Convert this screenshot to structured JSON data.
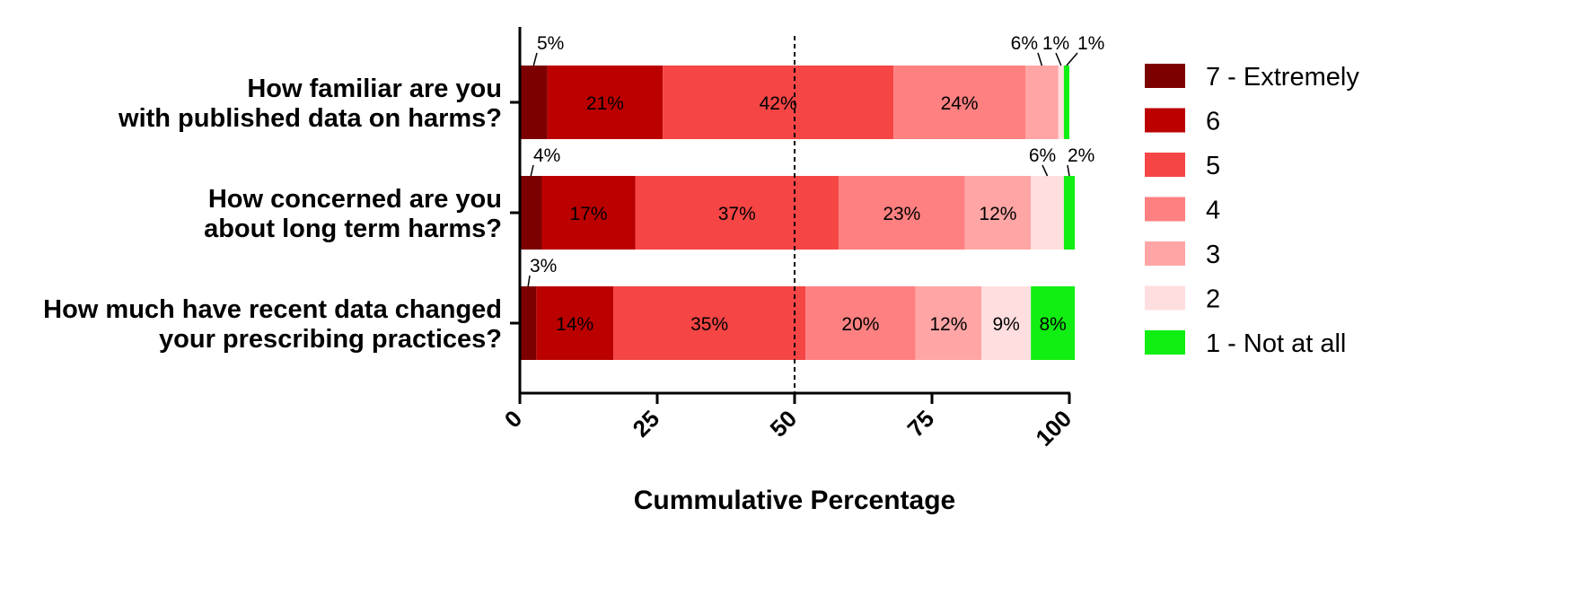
{
  "chart_data": {
    "type": "bar",
    "orientation": "horizontal",
    "stacked": true,
    "xlabel": "Cummulative Percentage",
    "xlim": [
      0,
      100
    ],
    "xticks": [
      "0",
      "25",
      "50",
      "75",
      "100"
    ],
    "reference_line": 50,
    "grid": false,
    "legend_position": "right",
    "categories": [
      [
        "How familiar are you",
        "with published data on harms?"
      ],
      [
        "How concerned are you",
        "about long term harms?"
      ],
      [
        "How much have recent data changed",
        "your prescribing practices?"
      ]
    ],
    "series": [
      {
        "name": "7 - Extremely",
        "color": "#7d0000",
        "values": [
          5,
          4,
          3
        ]
      },
      {
        "name": "6",
        "color": "#bb0000",
        "values": [
          21,
          17,
          14
        ]
      },
      {
        "name": "5",
        "color": "#f54545",
        "values": [
          42,
          37,
          35
        ]
      },
      {
        "name": "4",
        "color": "#ff8080",
        "values": [
          24,
          23,
          20
        ]
      },
      {
        "name": "3",
        "color": "#ffa5a5",
        "values": [
          6,
          12,
          12
        ]
      },
      {
        "name": "2",
        "color": "#ffdedf",
        "values": [
          1,
          6,
          9
        ]
      },
      {
        "name": "1 - Not at all",
        "color": "#11ee11",
        "values": [
          1,
          2,
          8
        ]
      }
    ],
    "data_labels": [
      [
        "5%",
        "21%",
        "42%",
        "24%",
        "6%",
        "1%",
        "1%"
      ],
      [
        "4%",
        "17%",
        "37%",
        "23%",
        "12%",
        "6%",
        "2%"
      ],
      [
        "3%",
        "14%",
        "35%",
        "20%",
        "12%",
        "9%",
        "8%"
      ]
    ]
  }
}
